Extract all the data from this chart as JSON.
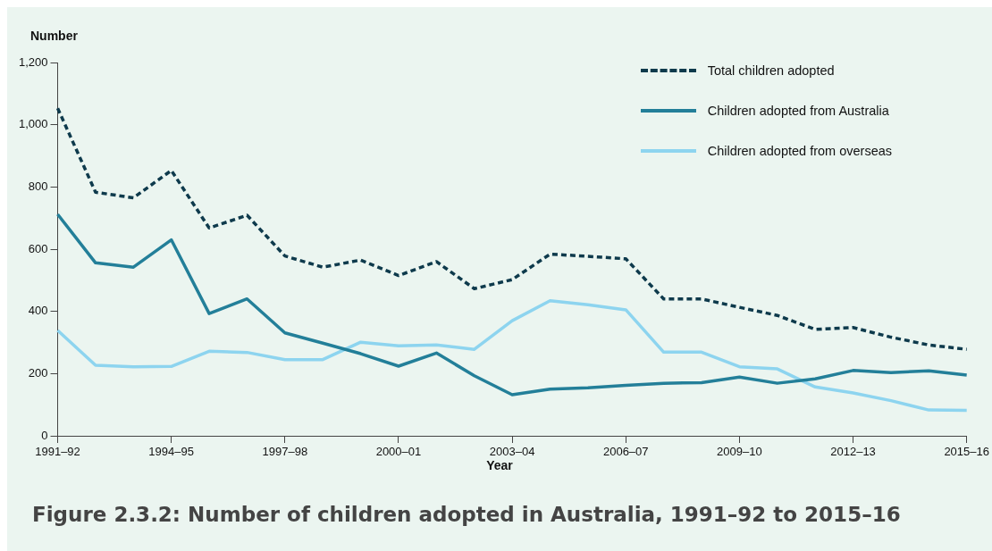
{
  "chart_data": {
    "type": "line",
    "title": "Figure 2.3.2: Number of children adopted in Australia, 1991–92 to 2015–16",
    "xlabel": "Year",
    "ylabel": "Number",
    "categories": [
      "1991–92",
      null,
      null,
      "1994–95",
      null,
      null,
      "1997–98",
      null,
      null,
      "2000–01",
      null,
      null,
      "2003–04",
      null,
      null,
      "2006–07",
      null,
      null,
      "2009–10",
      null,
      null,
      "2012–13",
      null,
      null,
      "2015–16"
    ],
    "series": [
      {
        "name": "Total children adopted",
        "color": "#0e3a4c",
        "line_style": "dashed",
        "values": [
          1053,
          783,
          765,
          853,
          668,
          709,
          578,
          542,
          565,
          515,
          560,
          473,
          502,
          584,
          577,
          569,
          440,
          440,
          413,
          387,
          342,
          348,
          317,
          292,
          278
        ]
      },
      {
        "name": "Children adopted from Australia",
        "color": "#237f99",
        "line_style": "solid",
        "values": [
          712,
          556,
          542,
          630,
          393,
          440,
          331,
          298,
          264,
          224,
          266,
          193,
          132,
          150,
          154,
          162,
          169,
          171,
          189,
          169,
          183,
          210,
          203,
          209,
          195
        ]
      },
      {
        "name": "Children adopted from overseas",
        "color": "#8dd4ef",
        "line_style": "solid",
        "values": [
          339,
          227,
          222,
          223,
          272,
          268,
          245,
          245,
          301,
          289,
          292,
          278,
          370,
          434,
          421,
          405,
          269,
          269,
          222,
          215,
          157,
          138,
          113,
          83,
          82
        ]
      }
    ],
    "ylim": [
      0,
      1200
    ],
    "yticks": [
      0,
      200,
      400,
      600,
      800,
      {
        "value": 1000,
        "label": "1,000"
      },
      {
        "value": 1200,
        "label": "1,200"
      }
    ],
    "grid": false,
    "legend": "top right",
    "marker": "none"
  }
}
